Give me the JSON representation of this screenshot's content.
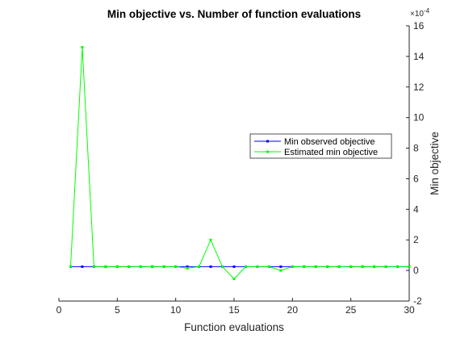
{
  "chart_data": {
    "type": "line",
    "title": "Min objective vs. Number of function evaluations",
    "xlabel": "Function evaluations",
    "ylabel": "Min objective",
    "y_exponent_label": "×10",
    "y_exponent_power": "-4",
    "xlim": [
      0,
      30
    ],
    "ylim": [
      -2,
      16
    ],
    "xticks": [
      "0",
      "5",
      "10",
      "15",
      "20",
      "25",
      "30"
    ],
    "yticks": [
      "-2",
      "0",
      "2",
      "4",
      "6",
      "8",
      "10",
      "12",
      "14",
      "16"
    ],
    "grid": false,
    "legend_position": "right",
    "x": [
      1,
      2,
      3,
      4,
      5,
      6,
      7,
      8,
      9,
      10,
      11,
      12,
      13,
      14,
      15,
      16,
      17,
      18,
      19,
      20,
      21,
      22,
      23,
      24,
      25,
      26,
      27,
      28,
      29,
      30
    ],
    "series": [
      {
        "name": "Min observed objective",
        "color": "#0000ff",
        "values": [
          0.25,
          0.25,
          0.25,
          0.25,
          0.25,
          0.25,
          0.25,
          0.25,
          0.25,
          0.25,
          0.25,
          0.25,
          0.25,
          0.25,
          0.25,
          0.25,
          0.25,
          0.25,
          0.25,
          0.25,
          0.25,
          0.25,
          0.25,
          0.25,
          0.25,
          0.25,
          0.25,
          0.25,
          0.25,
          0.25
        ]
      },
      {
        "name": "Estimated min objective",
        "color": "#00ff00",
        "values": [
          0.25,
          14.6,
          0.25,
          0.25,
          0.25,
          0.25,
          0.25,
          0.25,
          0.25,
          0.25,
          0.15,
          0.25,
          2.0,
          0.25,
          -0.55,
          0.25,
          0.25,
          0.25,
          0.0,
          0.25,
          0.25,
          0.25,
          0.25,
          0.25,
          0.25,
          0.25,
          0.25,
          0.25,
          0.25,
          0.25
        ]
      }
    ]
  }
}
